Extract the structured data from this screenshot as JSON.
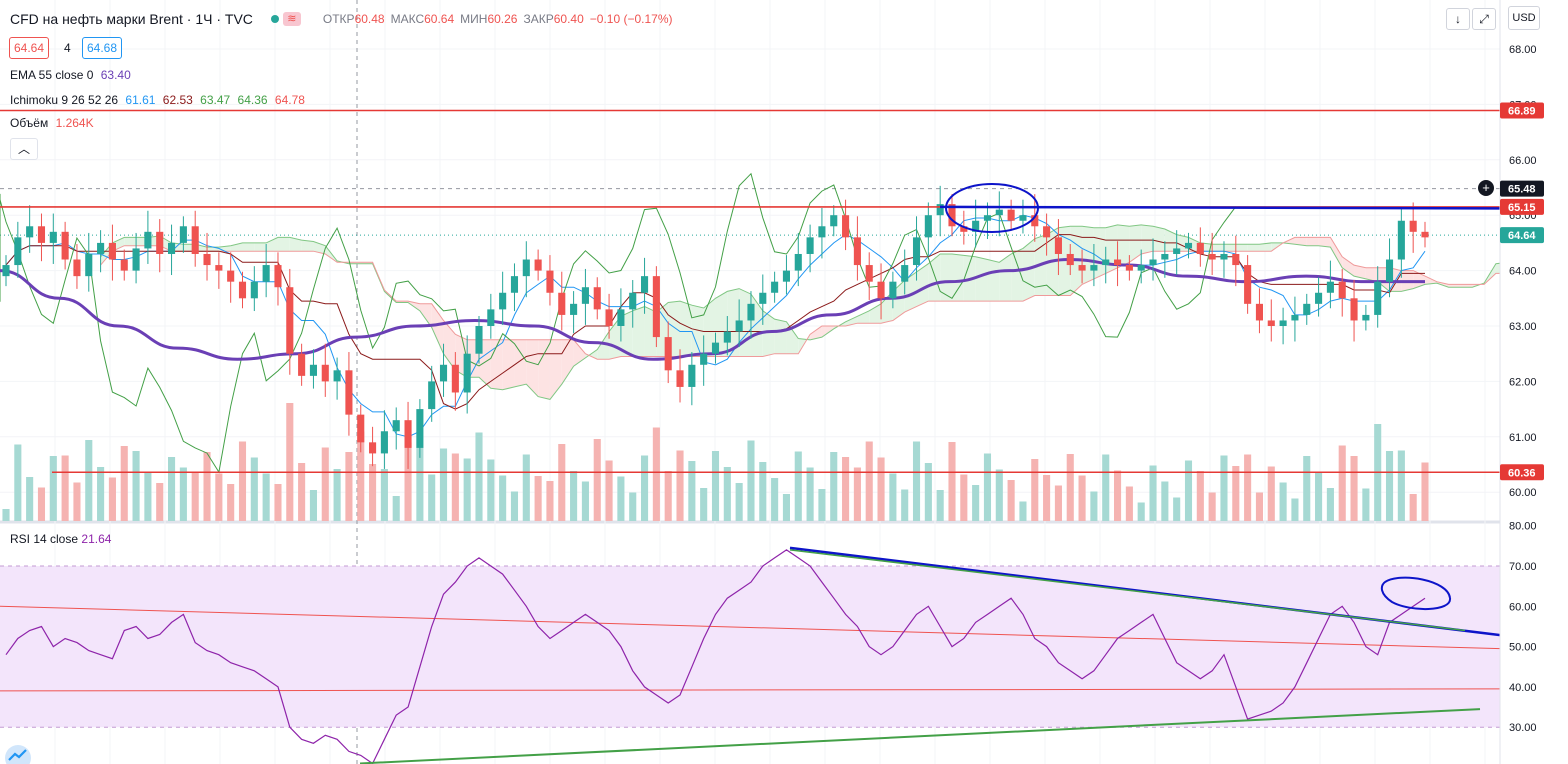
{
  "header": {
    "symbol": "CFD на нефть марки Brent · 1Ч · TVC",
    "open_label": "ОТКР",
    "open": "60.48",
    "high_label": "МАКС",
    "high": "60.64",
    "low_label": "МИН",
    "low": "60.26",
    "close_label": "ЗАКР",
    "close": "60.40",
    "change": "−0.10 (−0.17%)"
  },
  "spread": {
    "bid": "64.64",
    "mid": "4",
    "ask": "64.68"
  },
  "legends": {
    "ema": {
      "name": "EMA 55 close 0",
      "value": "63.40"
    },
    "ichimoku": {
      "name": "Ichimoku 9 26 52 26",
      "v1": "61.61",
      "v2": "62.53",
      "v3": "63.47",
      "v4": "64.36",
      "v5": "64.78"
    },
    "volume": {
      "name": "Объём",
      "value": "1.264K"
    },
    "rsi": {
      "name": "RSI 14 close",
      "value": "21.64"
    }
  },
  "toolbar": {
    "arrow_icon": "↓",
    "expand_icon": "⤢",
    "currency": "USD"
  },
  "colors": {
    "bull": "#26a69a",
    "bear": "#ef5350",
    "ema": "#6a3fb5",
    "tenkan": "#2196f3",
    "kijun": "#8b1a1a",
    "chikou": "#43a047",
    "span_a": "#81c784",
    "span_b": "#ef9a9a",
    "level": "#e53935",
    "trend": "#0d14c9",
    "rsi": "#8e24aa",
    "rsi_band": "#f3e5fb"
  },
  "chart_data": [
    {
      "type": "candlestick",
      "title": "CFD на нефть марки Brent · 1Ч · TVC",
      "ylim": [
        59.5,
        68.5
      ],
      "y_ticks": [
        "68.00",
        "67.00",
        "66.00",
        "65.00",
        "64.00",
        "63.00",
        "62.00",
        "61.00",
        "60.00"
      ],
      "price_labels": [
        {
          "value": 66.89,
          "text": "66.89",
          "style": "level"
        },
        {
          "value": 65.48,
          "text": "65.48",
          "style": "crosshair"
        },
        {
          "value": 65.15,
          "text": "65.15",
          "style": "level"
        },
        {
          "value": 64.64,
          "text": "64.64",
          "style": "last"
        },
        {
          "value": 60.36,
          "text": "60.36",
          "style": "level"
        }
      ],
      "horizontal_levels": [
        66.89,
        65.15,
        60.36
      ],
      "trend_line": {
        "start": 65.15,
        "end": 65.12
      },
      "close": [
        64.1,
        64.6,
        64.8,
        64.5,
        64.7,
        64.2,
        63.9,
        64.3,
        64.5,
        64.2,
        64.0,
        64.4,
        64.7,
        64.3,
        64.5,
        64.8,
        64.3,
        64.1,
        64.0,
        63.8,
        63.5,
        63.8,
        64.1,
        63.7,
        62.5,
        62.1,
        62.3,
        62.0,
        62.2,
        61.4,
        60.9,
        60.7,
        61.1,
        61.3,
        60.8,
        61.5,
        62.0,
        62.3,
        61.8,
        62.5,
        63.0,
        63.3,
        63.6,
        63.9,
        64.2,
        64.0,
        63.6,
        63.2,
        63.4,
        63.7,
        63.3,
        63.0,
        63.3,
        63.6,
        63.9,
        62.8,
        62.2,
        61.9,
        62.3,
        62.5,
        62.7,
        62.9,
        63.1,
        63.4,
        63.6,
        63.8,
        64.0,
        64.3,
        64.6,
        64.8,
        65.0,
        64.6,
        64.1,
        63.8,
        63.5,
        63.8,
        64.1,
        64.6,
        65.0,
        65.2,
        64.8,
        64.7,
        64.9,
        65.0,
        65.1,
        64.9,
        65.0,
        64.8,
        64.6,
        64.3,
        64.1,
        64.0,
        64.1,
        64.2,
        64.1,
        64.0,
        64.1,
        64.2,
        64.3,
        64.4,
        64.5,
        64.3,
        64.2,
        64.3,
        64.1,
        63.4,
        63.1,
        63.0,
        63.1,
        63.2,
        63.4,
        63.6,
        63.8,
        63.5,
        63.1,
        63.2,
        63.8,
        64.2,
        64.9,
        64.7,
        64.6
      ],
      "ema55": [
        64.0,
        63.5,
        63.0,
        62.6,
        62.4,
        62.5,
        62.8,
        63.0,
        63.1,
        63.0,
        62.7,
        62.4,
        62.5,
        62.9,
        63.2,
        63.5,
        63.8,
        64.0,
        64.2,
        64.1,
        63.9,
        63.8,
        63.9,
        63.8,
        63.8
      ],
      "ema55_x_range": [
        0,
        1425
      ]
    },
    {
      "type": "bar",
      "title": "Объём",
      "note": "volume bars, colour matches candle direction"
    },
    {
      "type": "line",
      "title": "RSI 14 close",
      "ylim": [
        20,
        80
      ],
      "y_ticks": [
        "80.00",
        "70.00",
        "60.00",
        "50.00",
        "40.00",
        "30.00"
      ],
      "band": [
        30,
        70
      ],
      "rsi": [
        48,
        52,
        54,
        55,
        50,
        52,
        51,
        49,
        48,
        47,
        54,
        55,
        52,
        53,
        56,
        58,
        51,
        49,
        48,
        46,
        45,
        44,
        42,
        40,
        30,
        27,
        26,
        28,
        27,
        24,
        23,
        21,
        27,
        33,
        35,
        45,
        55,
        63,
        66,
        70,
        72,
        70,
        68,
        64,
        60,
        55,
        52,
        54,
        56,
        58,
        56,
        54,
        50,
        44,
        40,
        38,
        36,
        38,
        45,
        52,
        58,
        62,
        64,
        66,
        70,
        72,
        74,
        72,
        70,
        66,
        62,
        58,
        55,
        50,
        48,
        50,
        54,
        58,
        60,
        55,
        50,
        52,
        56,
        58,
        60,
        62,
        58,
        52,
        50,
        46,
        44,
        42,
        44,
        48,
        52,
        54,
        56,
        58,
        52,
        46,
        44,
        42,
        44,
        48,
        40,
        32,
        33,
        34,
        36,
        40,
        46,
        52,
        58,
        60,
        56,
        50,
        48,
        56,
        58,
        60,
        62
      ],
      "support_line": [
        21,
        34.5
      ],
      "resistance_line": [
        74.5,
        52
      ],
      "red_lines": [
        [
          60.0,
          49.5
        ],
        [
          39.0,
          39.5
        ]
      ]
    }
  ]
}
